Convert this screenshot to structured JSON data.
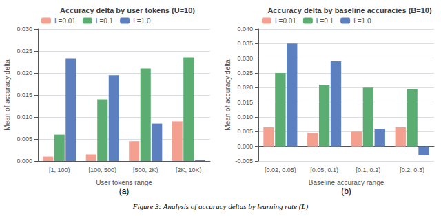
{
  "chart_data": [
    {
      "type": "bar",
      "title": "Accuracy delta by user tokens (U=10)",
      "xlabel": "User tokens range",
      "ylabel": "Mean of accuracy delta",
      "categories": [
        "[1, 100)",
        "[100, 500)",
        "[500, 2K)",
        "[2K, 10K)"
      ],
      "series": [
        {
          "name": "L=0.01",
          "color": "#F4A090",
          "values": [
            0.001,
            0.0015,
            0.0045,
            0.009
          ]
        },
        {
          "name": "L=0.1",
          "color": "#5BAD72",
          "values": [
            0.006,
            0.014,
            0.021,
            0.0235
          ]
        },
        {
          "name": "L=1.0",
          "color": "#5B7FBF",
          "values": [
            0.0232,
            0.0195,
            0.0085,
            0.0002
          ]
        }
      ],
      "ylim": [
        0.0,
        0.03
      ],
      "yticks": [
        {
          "value": 0.0,
          "label": "0.000"
        },
        0.005,
        {
          "value": 0.01,
          "label": "0.010"
        },
        0.015,
        {
          "value": 0.02,
          "label": "0.020"
        },
        0.025,
        {
          "value": 0.03,
          "label": "0.030"
        }
      ],
      "grid": true,
      "legend": "upper left",
      "annotations": [
        "(a)"
      ]
    },
    {
      "type": "bar",
      "title": "Accuracy delta by baseline accuracies (B=10)",
      "xlabel": "Baseline accuracy range",
      "ylabel": "Mean of accuracy delta",
      "categories": [
        "[0.02, 0.05)",
        "[0.05, 0.1)",
        "[0.1, 0.2)",
        "[0.2, 0.3)"
      ],
      "series": [
        {
          "name": "L=0.01",
          "color": "#F4A090",
          "values": [
            0.0065,
            0.0045,
            0.005,
            0.0065
          ]
        },
        {
          "name": "L=0.1",
          "color": "#5BAD72",
          "values": [
            0.025,
            0.021,
            0.02,
            0.0195
          ]
        },
        {
          "name": "L=1.0",
          "color": "#5B7FBF",
          "values": [
            0.035,
            0.029,
            0.006,
            -0.003
          ]
        }
      ],
      "ylim": [
        -0.005,
        0.04
      ],
      "yticks": [
        -0.005,
        {
          "value": 0.0,
          "label": "0.000"
        },
        0.005,
        {
          "value": 0.01,
          "label": "0.010"
        },
        0.015,
        {
          "value": 0.02,
          "label": "0.020"
        },
        0.025,
        {
          "value": 0.03,
          "label": "0.030"
        },
        0.035,
        {
          "value": 0.04,
          "label": "0.040"
        }
      ],
      "grid": true,
      "legend": "upper left",
      "annotations": [
        "(b)"
      ]
    }
  ],
  "caption": "Figure 3: Analysis of accuracy deltas by learning rate (L)"
}
